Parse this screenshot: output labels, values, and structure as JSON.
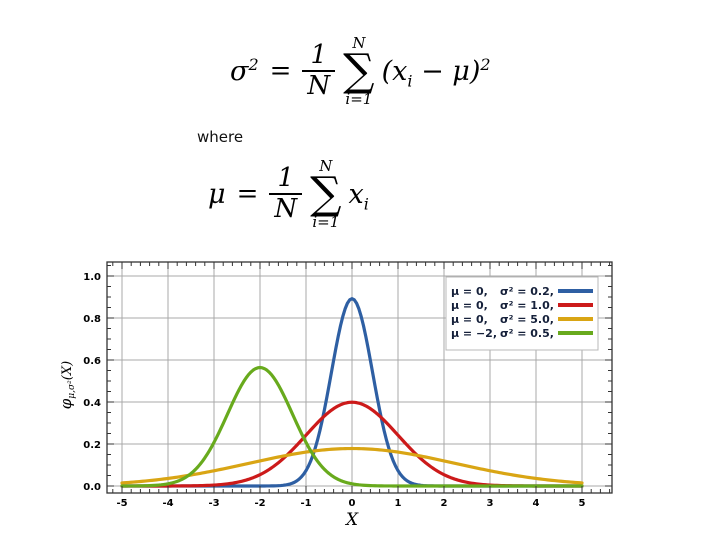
{
  "page": {
    "background": "#ffffff"
  },
  "formulas": {
    "where_label": "where",
    "variance": {
      "lhs": "σ",
      "lhs_sup": "2",
      "eq": "=",
      "num": "1",
      "den": "N",
      "sum_upper": "N",
      "sum_sign": "∑",
      "sum_lower": "i=1",
      "term_open": "(x",
      "term_sub": "i",
      "term_close": " − μ)",
      "term_sup": "2"
    },
    "mean": {
      "lhs": "μ",
      "eq": "=",
      "num": "1",
      "den": "N",
      "sum_upper": "N",
      "sum_sign": "∑",
      "sum_lower": "i=1",
      "term": "x",
      "term_sub": "i"
    }
  },
  "chart_data": {
    "type": "line",
    "title": "",
    "xlabel": "X",
    "ylabel": "φμ,σ²(X)",
    "ylabel_parts": {
      "main": "φ",
      "sub": "μ,σ²",
      "suffix": "(X)"
    },
    "xlim": [
      -5,
      5
    ],
    "ylim": [
      0,
      1.0
    ],
    "x_ticks": [
      -5,
      -4,
      -3,
      -2,
      -1,
      0,
      1,
      2,
      3,
      4,
      5
    ],
    "x_tick_labels": [
      "-5",
      "-4",
      "-3",
      "-2",
      "-1",
      "0",
      "1",
      "2",
      "3",
      "4",
      "5"
    ],
    "y_ticks": [
      0,
      0.2,
      0.4,
      0.6,
      0.8,
      1.0
    ],
    "y_tick_labels": [
      "0.0",
      "0.2",
      "0.4",
      "0.6",
      "0.8",
      "1.0"
    ],
    "x_minor_step": 0.2,
    "y_minor_step": 0.05,
    "grid": true,
    "legend_position": "top-right",
    "curve_function": "normal_pdf",
    "sample_step": 0.05,
    "series": [
      {
        "mu_label": "μ = 0,",
        "sigma_label": "σ² = 0.2,",
        "mu": 0,
        "sigma2": 0.2,
        "color": "#2e5fa3",
        "peak_x": 0,
        "peak_y": 0.89
      },
      {
        "mu_label": "μ = 0,",
        "sigma_label": "σ² = 1.0,",
        "mu": 0,
        "sigma2": 1.0,
        "color": "#cc1a1a",
        "peak_x": 0,
        "peak_y": 0.4
      },
      {
        "mu_label": "μ = 0,",
        "sigma_label": "σ² = 5.0,",
        "mu": 0,
        "sigma2": 5.0,
        "color": "#d9a514",
        "peak_x": 0,
        "peak_y": 0.18
      },
      {
        "mu_label": "μ = −2,",
        "sigma_label": "σ² = 0.5,",
        "mu": -2,
        "sigma2": 0.5,
        "color": "#68aa1d",
        "peak_x": -2,
        "peak_y": 0.56
      }
    ],
    "colors": {
      "grid": "#a8a8a8",
      "frame": "#333333",
      "tick_text": "#000000",
      "axis_label_text": "#000000",
      "legend_bg": "#ffffff",
      "legend_border": "#b8b8b8",
      "legend_text": "#15203a"
    }
  }
}
